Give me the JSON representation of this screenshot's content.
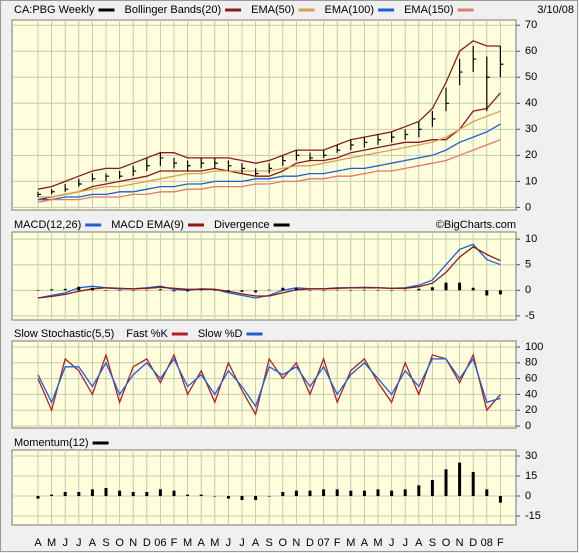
{
  "chart_data": [
    {
      "type": "ohlc",
      "title": "CA:PBG Weekly",
      "date": "3/10/08",
      "categories": [
        "A",
        "M",
        "J",
        "J",
        "A",
        "S",
        "O",
        "N",
        "D",
        "06",
        "F",
        "M",
        "A",
        "M",
        "J",
        "J",
        "A",
        "S",
        "O",
        "N",
        "D",
        "07",
        "F",
        "M",
        "A",
        "M",
        "J",
        "J",
        "A",
        "S",
        "O",
        "N",
        "D",
        "08",
        "F"
      ],
      "price": {
        "color": "#000000",
        "high": [
          6,
          7,
          9,
          11,
          13,
          13,
          14,
          16,
          19,
          21,
          19,
          18,
          19,
          19,
          18,
          17,
          15,
          17,
          20,
          22,
          21,
          22,
          24,
          26,
          27,
          28,
          29,
          30,
          33,
          37,
          46,
          57,
          62,
          58,
          62
        ],
        "low": [
          4,
          5,
          6,
          8,
          10,
          10,
          11,
          12,
          14,
          16,
          15,
          14,
          15,
          15,
          14,
          13,
          12,
          13,
          16,
          18,
          18,
          19,
          21,
          22,
          23,
          24,
          25,
          26,
          27,
          31,
          37,
          47,
          52,
          37,
          50
        ],
        "close": [
          5,
          6,
          7,
          9,
          11,
          12,
          12,
          14,
          16,
          19,
          17,
          16,
          17,
          17,
          16,
          15,
          13,
          15,
          18,
          20,
          19,
          20,
          22,
          24,
          25,
          26,
          27,
          28,
          30,
          34,
          40,
          52,
          57,
          50,
          55
        ]
      },
      "series": [
        {
          "name": "Bollinger Bands(20)",
          "color": "#8b1a1a",
          "upper": [
            7,
            8,
            10,
            12,
            14,
            15,
            15,
            17,
            19,
            21,
            21,
            19,
            19,
            19,
            19,
            18,
            17,
            18,
            20,
            22,
            22,
            22,
            24,
            26,
            27,
            28,
            29,
            31,
            33,
            38,
            48,
            60,
            64,
            62,
            62
          ],
          "lower": [
            3,
            4,
            5,
            6,
            8,
            9,
            10,
            11,
            12,
            14,
            14,
            14,
            14,
            15,
            14,
            13,
            12,
            12,
            14,
            17,
            18,
            18,
            19,
            21,
            22,
            23,
            24,
            25,
            25,
            26,
            26,
            30,
            37,
            38,
            44
          ]
        },
        {
          "name": "EMA(50)",
          "color": "#d4a24c",
          "values": [
            4,
            4,
            5,
            6,
            7,
            8,
            8,
            9,
            10,
            11,
            12,
            13,
            13,
            14,
            14,
            14,
            14,
            14,
            15,
            16,
            16,
            17,
            18,
            19,
            20,
            21,
            22,
            23,
            24,
            25,
            27,
            30,
            33,
            35,
            37
          ]
        },
        {
          "name": "EMA(100)",
          "color": "#1f5fd6",
          "values": [
            3,
            3,
            4,
            4,
            5,
            5,
            6,
            6,
            7,
            8,
            8,
            9,
            9,
            10,
            10,
            10,
            11,
            11,
            12,
            12,
            13,
            13,
            14,
            15,
            15,
            16,
            17,
            18,
            19,
            20,
            22,
            25,
            27,
            29,
            32
          ]
        },
        {
          "name": "EMA(150)",
          "color": "#e07a70",
          "values": [
            2,
            3,
            3,
            3,
            4,
            4,
            4,
            5,
            5,
            6,
            6,
            7,
            7,
            8,
            8,
            8,
            9,
            9,
            10,
            10,
            11,
            11,
            12,
            12,
            13,
            14,
            14,
            15,
            16,
            17,
            18,
            20,
            22,
            24,
            26
          ]
        }
      ],
      "ylim": [
        -1,
        72
      ],
      "yticks": [
        0,
        10,
        20,
        30,
        40,
        50,
        60,
        70
      ],
      "grid": true
    },
    {
      "type": "line",
      "source": "©BigCharts.com",
      "series": [
        {
          "name": "MACD(12,26)",
          "type": "line",
          "color": "#1f5fd6",
          "values": [
            -1.5,
            -1,
            -0.5,
            0.5,
            0.8,
            0.5,
            0.3,
            0.3,
            0.5,
            0.8,
            0.2,
            0,
            0.3,
            0.2,
            -0.5,
            -1,
            -1.5,
            -1,
            0,
            0.5,
            0.3,
            0.3,
            0.5,
            0.5,
            0.6,
            0.5,
            0.4,
            0.5,
            1,
            2,
            5,
            8,
            9,
            6,
            5
          ]
        },
        {
          "name": "MACD EMA(9)",
          "type": "line",
          "color": "#8b1a1a",
          "values": [
            -1.5,
            -1.2,
            -0.8,
            -0.2,
            0.3,
            0.5,
            0.4,
            0.3,
            0.4,
            0.6,
            0.4,
            0.2,
            0.2,
            0.2,
            -0.2,
            -0.7,
            -1.1,
            -1.1,
            -0.5,
            0.1,
            0.3,
            0.3,
            0.4,
            0.5,
            0.5,
            0.5,
            0.4,
            0.4,
            0.7,
            1.4,
            3.5,
            6.5,
            8.5,
            7,
            5.8
          ]
        },
        {
          "name": "Divergence",
          "type": "bar",
          "color": "#000000",
          "values": [
            0,
            0.2,
            0.3,
            0.7,
            0.5,
            0,
            -0.1,
            0,
            0.1,
            0.2,
            -0.2,
            -0.2,
            0.1,
            0,
            -0.3,
            -0.3,
            -0.4,
            0.1,
            0.5,
            0.4,
            0,
            0,
            0.1,
            0,
            0.1,
            0,
            0,
            0.1,
            0.3,
            0.6,
            1.5,
            1.5,
            0.5,
            -1,
            -0.8
          ]
        }
      ],
      "ylim": [
        -5.8,
        11.4
      ],
      "yticks": [
        -5,
        0,
        5,
        10
      ],
      "grid": true
    },
    {
      "type": "line",
      "title": "Slow Stochastic(5,5)",
      "series": [
        {
          "name": "Fast %K",
          "type": "line",
          "color": "#b22222",
          "values": [
            60,
            20,
            85,
            70,
            40,
            90,
            30,
            75,
            85,
            55,
            90,
            40,
            70,
            30,
            80,
            45,
            15,
            85,
            60,
            80,
            40,
            85,
            30,
            70,
            85,
            55,
            30,
            80,
            40,
            90,
            85,
            55,
            90,
            20,
            40
          ]
        },
        {
          "name": "Slow %D",
          "type": "line",
          "color": "#1f5fd6",
          "values": [
            65,
            30,
            75,
            75,
            50,
            80,
            40,
            65,
            80,
            60,
            85,
            50,
            65,
            40,
            70,
            50,
            25,
            75,
            65,
            75,
            50,
            75,
            40,
            65,
            80,
            60,
            40,
            70,
            50,
            85,
            85,
            60,
            85,
            30,
            35
          ]
        }
      ],
      "ylim": [
        -2.5,
        107.6
      ],
      "yticks": [
        0,
        20,
        40,
        60,
        80,
        100
      ],
      "grid": true
    },
    {
      "type": "bar",
      "series": [
        {
          "name": "Momentum(12)",
          "type": "bar",
          "color": "#000000",
          "values": [
            -2,
            1,
            3,
            3,
            5,
            6,
            4,
            3,
            3,
            5,
            4,
            1,
            1,
            0,
            -2,
            -3,
            -3,
            0,
            3,
            4,
            4,
            5,
            5,
            4,
            4,
            5,
            4,
            5,
            8,
            12,
            20,
            25,
            18,
            5,
            -5
          ]
        }
      ],
      "ylim": [
        -21.75,
        34.5
      ],
      "yticks": [
        -15,
        0,
        15,
        30
      ],
      "grid": true
    }
  ]
}
